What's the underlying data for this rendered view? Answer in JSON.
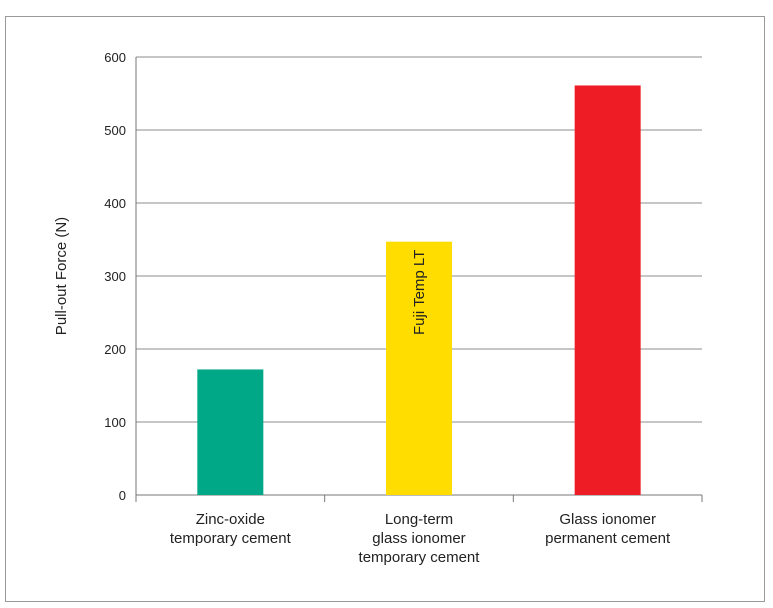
{
  "chart_data": {
    "type": "bar",
    "title": "",
    "ylabel": "Pull-out Force (N)",
    "xlabel": "",
    "ylim": [
      0,
      600
    ],
    "yticks": [
      0,
      100,
      200,
      300,
      400,
      500,
      600
    ],
    "grid": true,
    "categories": [
      [
        "Zinc-oxide",
        "temporary cement"
      ],
      [
        "Long-term",
        "glass ionomer",
        "temporary cement"
      ],
      [
        "Glass ionomer",
        "permanent cement"
      ]
    ],
    "values": [
      172,
      347,
      561
    ],
    "colors": [
      "#00a887",
      "#ffdd00",
      "#ee1c25"
    ],
    "bar_labels": [
      "",
      "Fuji Temp LT",
      ""
    ]
  }
}
